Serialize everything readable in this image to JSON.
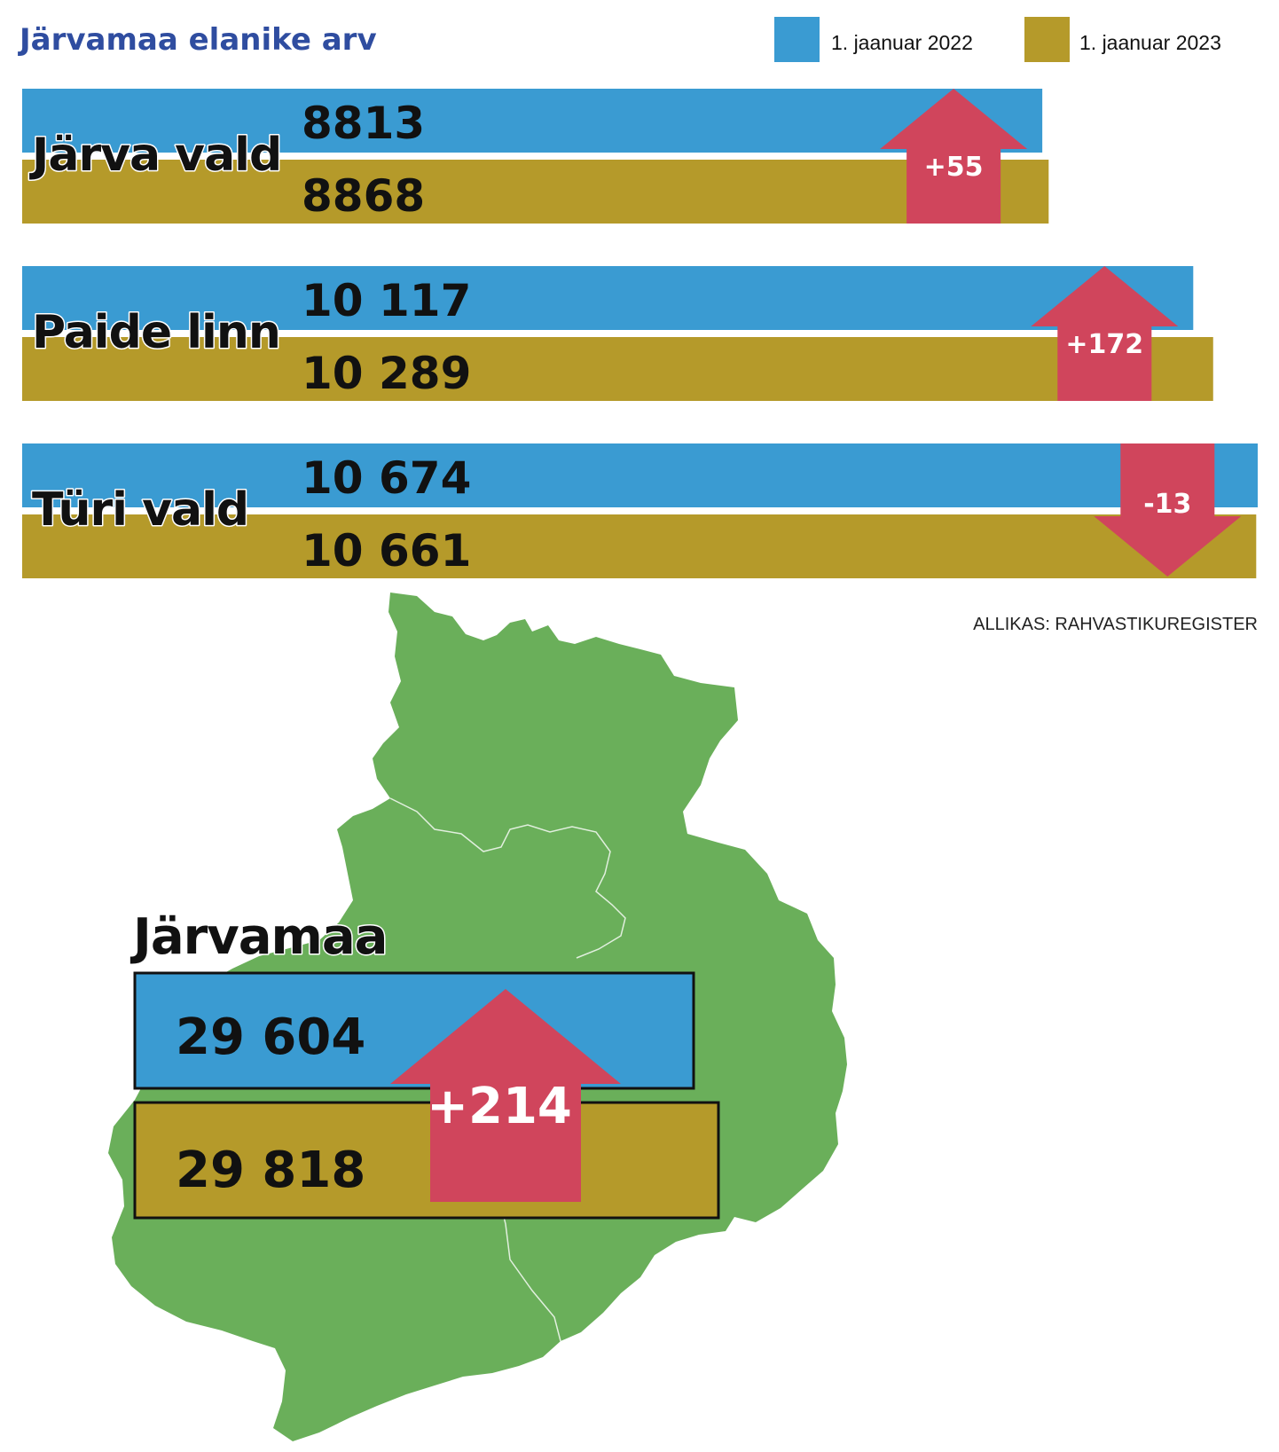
{
  "title": "Järvamaa elanike arv",
  "legend": [
    {
      "label": "1. jaanuar 2022",
      "color": "#3A9BD2"
    },
    {
      "label": "1. jaanuar 2023",
      "color": "#B59A2A"
    }
  ],
  "colors": {
    "arrow": "#D0455C",
    "map": "#6AAF5A",
    "title": "#2F4DA0"
  },
  "source": "ALLIKAS: RAHVASTIKUREGISTER",
  "chart_data": [
    {
      "type": "bar",
      "series_names": [
        "1. jaanuar 2022",
        "1. jaanuar 2023"
      ],
      "categories": [
        "Järva vald",
        "Paide linn",
        "Türi vald"
      ],
      "series": [
        {
          "name": "1. jaanuar 2022",
          "values": [
            8813,
            10117,
            10674
          ],
          "labels": [
            "8813",
            "10 117",
            "10 674"
          ]
        },
        {
          "name": "1. jaanuar 2023",
          "values": [
            8868,
            10289,
            10661
          ],
          "labels": [
            "8868",
            "10 289",
            "10 661"
          ]
        }
      ],
      "changes": [
        "+55",
        "+172",
        "-13"
      ],
      "title": "Järvamaa elanike arv"
    },
    {
      "type": "bar",
      "categories": [
        "Järvamaa"
      ],
      "series": [
        {
          "name": "1. jaanuar 2022",
          "values": [
            29604
          ],
          "labels": [
            "29 604"
          ]
        },
        {
          "name": "1. jaanuar 2023",
          "values": [
            29818
          ],
          "labels": [
            "29 818"
          ]
        }
      ],
      "changes": [
        "+214"
      ]
    }
  ]
}
